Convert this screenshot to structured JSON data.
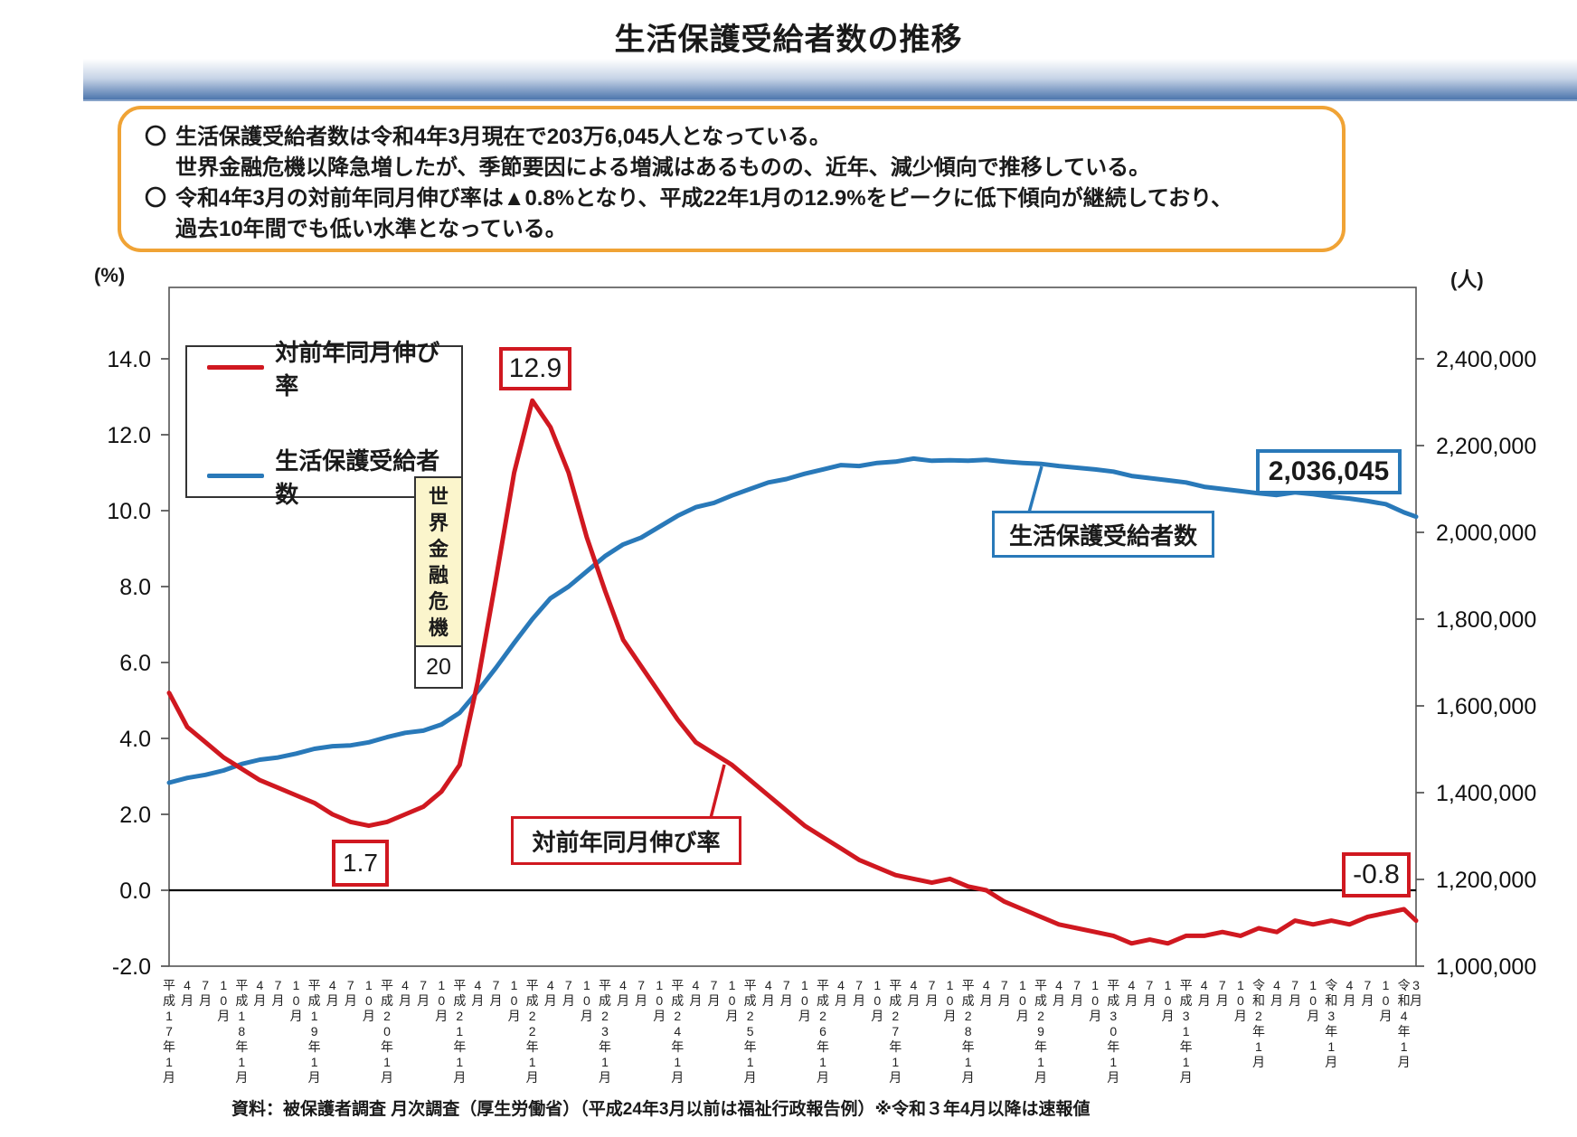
{
  "page": {
    "title": "生活保護受給者数の推移",
    "footer_source": "資料：被保護者調査 月次調査（厚生労働省）（平成24年3月以前は福祉行政報告例）※令和３年4月以降は速報値"
  },
  "summary_box": {
    "bullet_char": "〇",
    "items": [
      {
        "lines": [
          "生活保護受給者数は令和4年3月現在で203万6,045人となっている。",
          "世界金融危機以降急増したが、季節要因による増減はあるものの、近年、減少傾向で推移している。"
        ]
      },
      {
        "lines": [
          "令和4年3月の対前年同月伸び率は▲0.8%となり、平成22年1月の12.9%をピークに低下傾向が継続しており、",
          "過去10年間でも低い水準となっている。"
        ]
      }
    ]
  },
  "colors": {
    "rate_red": "#d01820",
    "recipients_blue": "#2979b9",
    "summary_border_orange": "#f0a335",
    "crisis_fill_yellow": "#fbf5cc",
    "header_gradient_blue": "#4d76ad"
  },
  "chart_data": {
    "type": "line",
    "title": "生活保護受給者数の推移",
    "left_axis": {
      "unit": "(%)",
      "ticks": [
        -2.0,
        0.0,
        2.0,
        4.0,
        6.0,
        8.0,
        10.0,
        12.0,
        14.0
      ],
      "range": [
        -2.0,
        15.9
      ]
    },
    "right_axis": {
      "unit": "(人)",
      "ticks": [
        1000000,
        1200000,
        1400000,
        1600000,
        1800000,
        2000000,
        2200000,
        2400000
      ],
      "range": [
        1000000,
        2566000
      ]
    },
    "x_axis": {
      "description": "月次（平成17年1月～令和4年3月）",
      "labels": [
        "平成17年1月",
        "4月",
        "7月",
        "10月",
        "平成18年1月",
        "4月",
        "7月",
        "10月",
        "平成19年1月",
        "4月",
        "7月",
        "10月",
        "平成20年1月",
        "4月",
        "7月",
        "10月",
        "平成21年1月",
        "4月",
        "7月",
        "10月",
        "平成22年1月",
        "4月",
        "7月",
        "10月",
        "平成23年1月",
        "4月",
        "7月",
        "10月",
        "平成24年1月",
        "4月",
        "7月",
        "10月",
        "平成25年1月",
        "4月",
        "7月",
        "10月",
        "平成26年1月",
        "4月",
        "7月",
        "10月",
        "平成27年1月",
        "4月",
        "7月",
        "10月",
        "平成28年1月",
        "4月",
        "7月",
        "10月",
        "平成29年1月",
        "4月",
        "7月",
        "10月",
        "平成30年1月",
        "4月",
        "7月",
        "10月",
        "平成31年1月",
        "4月",
        "7月",
        "10月",
        "令和2年1月",
        "4月",
        "7月",
        "10月",
        "令和3年1月",
        "4月",
        "7月",
        "10月",
        "令和4年1月",
        "3月"
      ]
    },
    "series": [
      {
        "name": "対前年同月伸び率",
        "axis": "left",
        "color": "#d01820",
        "values": [
          5.2,
          4.3,
          3.9,
          3.5,
          3.2,
          2.9,
          2.7,
          2.5,
          2.3,
          2.0,
          1.8,
          1.7,
          1.8,
          2.0,
          2.2,
          2.6,
          3.3,
          5.5,
          8.2,
          11.0,
          12.9,
          12.2,
          11.0,
          9.3,
          7.9,
          6.6,
          5.9,
          5.2,
          4.5,
          3.9,
          3.6,
          3.3,
          2.9,
          2.5,
          2.1,
          1.7,
          1.4,
          1.1,
          0.8,
          0.6,
          0.4,
          0.3,
          0.2,
          0.3,
          0.1,
          0.0,
          -0.3,
          -0.5,
          -0.7,
          -0.9,
          -1.0,
          -1.1,
          -1.2,
          -1.4,
          -1.3,
          -1.4,
          -1.2,
          -1.2,
          -1.1,
          -1.2,
          -1.0,
          -1.1,
          -0.8,
          -0.9,
          -0.8,
          -0.9,
          -0.7,
          -0.6,
          -0.5,
          -0.8
        ]
      },
      {
        "name": "生活保護受給者数",
        "axis": "right",
        "color": "#2979b9",
        "values": [
          1423000,
          1434000,
          1441000,
          1451000,
          1466000,
          1476000,
          1481000,
          1490000,
          1501000,
          1507000,
          1509000,
          1516000,
          1528000,
          1538000,
          1543000,
          1557000,
          1584000,
          1634000,
          1688000,
          1745000,
          1800000,
          1848000,
          1875000,
          1910000,
          1945000,
          1972000,
          1988000,
          2013000,
          2038000,
          2058000,
          2068000,
          2085000,
          2100000,
          2115000,
          2123000,
          2135000,
          2145000,
          2155000,
          2153000,
          2160000,
          2163000,
          2170000,
          2165000,
          2166000,
          2165000,
          2167000,
          2163000,
          2160000,
          2158000,
          2153000,
          2149000,
          2145000,
          2140000,
          2130000,
          2125000,
          2120000,
          2115000,
          2105000,
          2100000,
          2095000,
          2090000,
          2086000,
          2092000,
          2088000,
          2082000,
          2078000,
          2072000,
          2065000,
          2046000,
          2036045
        ]
      }
    ],
    "annotations": {
      "peak_value_label": "12.9",
      "peak_point": "平成22年1月",
      "trough_value_label": "1.7",
      "latest_rate_label": "-0.8",
      "latest_count_label": "2,036,045",
      "latest_point": "令和4年3月",
      "crisis_box_text": "世界金融危機",
      "crisis_box_year": "20",
      "recipients_callout": "生活保護受給者数",
      "rate_callout": "対前年同月伸び率"
    },
    "legend_position": "upper-left",
    "grid": false
  }
}
